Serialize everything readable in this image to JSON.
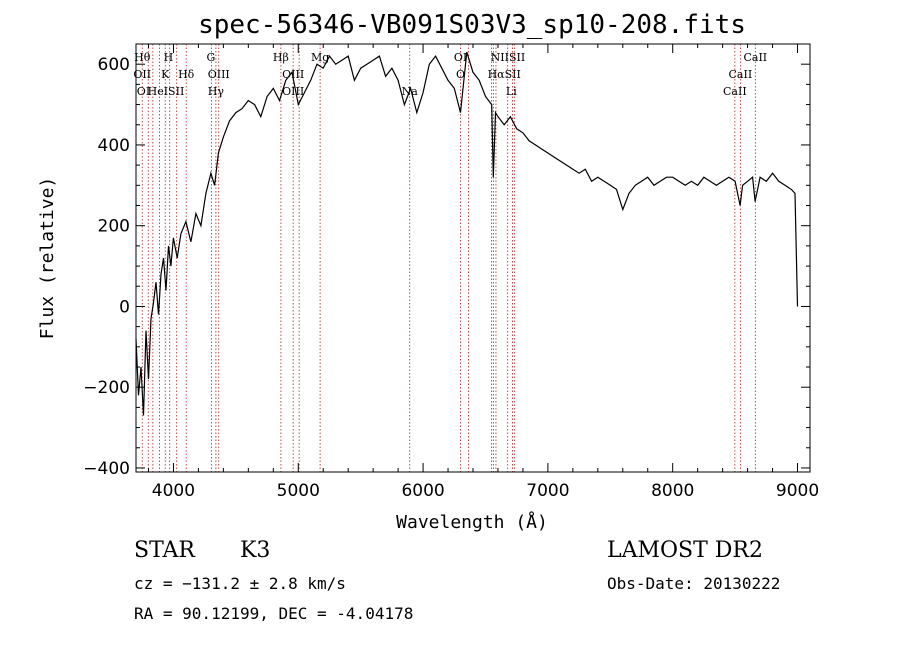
{
  "chart_data": {
    "type": "line",
    "title": "spec-56346-VB091S03V3_sp10-208.fits",
    "xlabel": "Wavelength (Å)",
    "ylabel": "Flux (relative)",
    "xlim": [
      3700,
      9100
    ],
    "ylim": [
      -410,
      650
    ],
    "x_ticks": [
      4000,
      5000,
      6000,
      7000,
      8000,
      9000
    ],
    "y_ticks": [
      -400,
      -200,
      0,
      200,
      400,
      600
    ],
    "grid": false,
    "series": [
      {
        "x": [
          3700,
          3720,
          3740,
          3760,
          3780,
          3800,
          3820,
          3840,
          3860,
          3880,
          3900,
          3920,
          3940,
          3960,
          3980,
          4000,
          4030,
          4060,
          4100,
          4140,
          4180,
          4220,
          4260,
          4300,
          4330,
          4360,
          4400,
          4450,
          4500,
          4550,
          4600,
          4650,
          4700,
          4750,
          4800,
          4850,
          4900,
          4950,
          5000,
          5050,
          5100,
          5150,
          5200,
          5250,
          5300,
          5350,
          5400,
          5450,
          5500,
          5550,
          5600,
          5650,
          5700,
          5750,
          5800,
          5850,
          5900,
          5950,
          6000,
          6050,
          6100,
          6150,
          6200,
          6250,
          6300,
          6350,
          6400,
          6450,
          6500,
          6550,
          6563,
          6580,
          6600,
          6650,
          6700,
          6750,
          6800,
          6850,
          6900,
          6950,
          7000,
          7050,
          7100,
          7150,
          7200,
          7250,
          7300,
          7350,
          7400,
          7450,
          7500,
          7550,
          7600,
          7650,
          7700,
          7750,
          7800,
          7850,
          7900,
          7950,
          8000,
          8050,
          8100,
          8150,
          8200,
          8250,
          8300,
          8350,
          8400,
          8450,
          8500,
          8540,
          8560,
          8600,
          8640,
          8660,
          8700,
          8750,
          8800,
          8850,
          8900,
          8950,
          8980,
          9000
        ],
        "y": [
          -80,
          -220,
          -150,
          -270,
          -60,
          -180,
          -30,
          10,
          60,
          -20,
          80,
          120,
          40,
          150,
          100,
          170,
          120,
          180,
          210,
          160,
          230,
          200,
          280,
          330,
          300,
          380,
          420,
          460,
          480,
          490,
          510,
          500,
          470,
          520,
          540,
          510,
          560,
          580,
          500,
          530,
          560,
          600,
          590,
          620,
          600,
          610,
          620,
          560,
          590,
          600,
          610,
          620,
          570,
          590,
          560,
          500,
          540,
          480,
          530,
          600,
          620,
          590,
          560,
          540,
          480,
          630,
          580,
          560,
          520,
          500,
          320,
          480,
          470,
          450,
          470,
          440,
          430,
          410,
          400,
          390,
          380,
          370,
          360,
          350,
          340,
          330,
          340,
          310,
          320,
          310,
          300,
          290,
          240,
          280,
          300,
          310,
          320,
          300,
          310,
          320,
          320,
          310,
          300,
          310,
          300,
          320,
          310,
          300,
          310,
          320,
          310,
          250,
          300,
          310,
          320,
          260,
          320,
          310,
          330,
          310,
          300,
          290,
          280,
          0
        ]
      }
    ],
    "line_markers": [
      {
        "x": 3750
      },
      {
        "x": 3798
      },
      {
        "x": 3835
      },
      {
        "x": 3889
      },
      {
        "x": 3934
      },
      {
        "x": 3970
      },
      {
        "x": 4026
      },
      {
        "x": 4102
      },
      {
        "x": 4304
      },
      {
        "x": 4340
      },
      {
        "x": 4363
      },
      {
        "x": 4861
      },
      {
        "x": 4959
      },
      {
        "x": 5007
      },
      {
        "x": 5175
      },
      {
        "x": 5893
      },
      {
        "x": 6300
      },
      {
        "x": 6364
      },
      {
        "x": 6548
      },
      {
        "x": 6563
      },
      {
        "x": 6584
      },
      {
        "x": 6678
      },
      {
        "x": 6717
      },
      {
        "x": 6731
      },
      {
        "x": 8498
      },
      {
        "x": 8542
      },
      {
        "x": 8662
      }
    ],
    "line_labels": [
      {
        "text": "Hθ",
        "x": 3750,
        "row": 0
      },
      {
        "text": "H",
        "x": 3960,
        "row": 0
      },
      {
        "text": "G",
        "x": 4300,
        "row": 0
      },
      {
        "text": "Hβ",
        "x": 4861,
        "row": 0
      },
      {
        "text": "Mg",
        "x": 5175,
        "row": 0
      },
      {
        "text": "OI",
        "x": 6300,
        "row": 0
      },
      {
        "text": "NIISII",
        "x": 6680,
        "row": 0
      },
      {
        "text": "CaII",
        "x": 8662,
        "row": 0
      },
      {
        "text": "OII",
        "x": 3750,
        "row": 1
      },
      {
        "text": "K",
        "x": 3934,
        "row": 1
      },
      {
        "text": "Hδ",
        "x": 4102,
        "row": 1
      },
      {
        "text": "OIII",
        "x": 4363,
        "row": 1
      },
      {
        "text": "OIII",
        "x": 4959,
        "row": 1
      },
      {
        "text": "O",
        "x": 6300,
        "row": 1
      },
      {
        "text": "HαSII",
        "x": 6650,
        "row": 1
      },
      {
        "text": "CaII",
        "x": 8542,
        "row": 1
      },
      {
        "text": "OI",
        "x": 3760,
        "row": 2
      },
      {
        "text": "HeISII",
        "x": 3940,
        "row": 2
      },
      {
        "text": "Hγ",
        "x": 4340,
        "row": 2
      },
      {
        "text": "OIII",
        "x": 4959,
        "row": 2
      },
      {
        "text": "Na",
        "x": 5893,
        "row": 2
      },
      {
        "text": "Li",
        "x": 6707,
        "row": 2
      },
      {
        "text": "CaII",
        "x": 8498,
        "row": 2
      }
    ]
  },
  "info": {
    "class": "STAR",
    "subclass": "K3",
    "survey": "LAMOST DR2",
    "cz": "cz = −131.2 ± 2.8 km/s",
    "obs_date": "Obs-Date: 20130222",
    "radec": "RA =  90.12199, DEC =  -4.04178"
  }
}
